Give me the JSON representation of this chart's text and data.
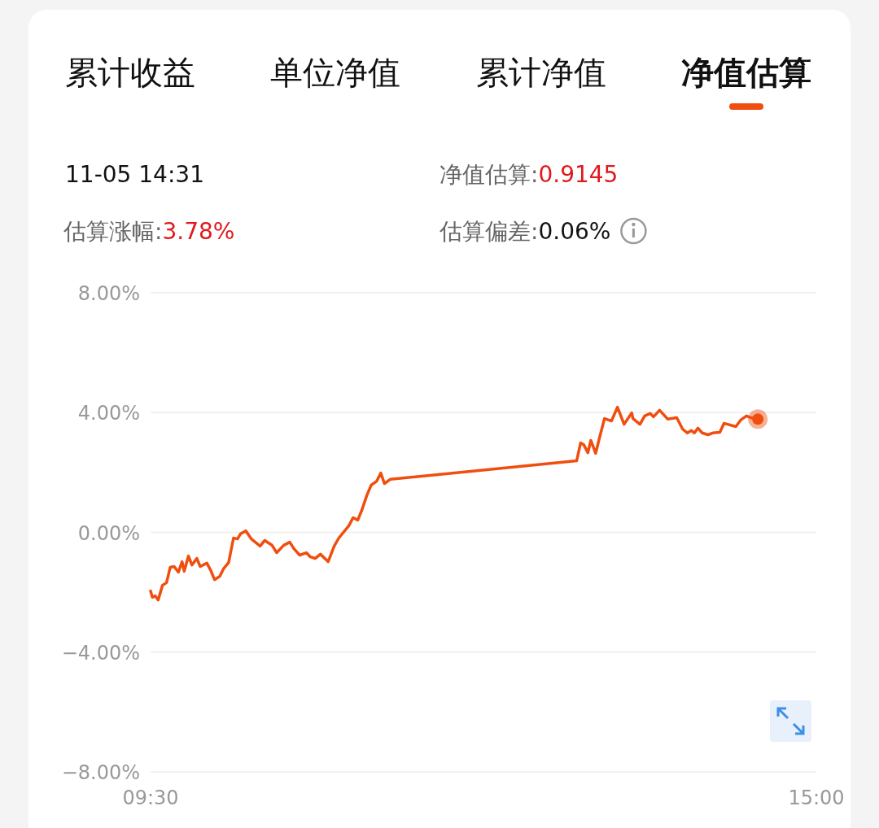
{
  "chart_data": {
    "type": "line",
    "annotations": [
      "累计收益",
      "单位净值",
      "累计净值",
      "净值估算",
      "11-05 14:31",
      "净值估算:0.9145",
      "估算涨幅:3.78%",
      "估算偏差:0.06%"
    ],
    "xlim": [
      9.5,
      15
    ],
    "xticks": [
      {
        "value": 9.5,
        "label": "09:30"
      },
      {
        "value": 15,
        "label": "15:00"
      }
    ],
    "ylim": [
      -8,
      8
    ],
    "yticks": [
      {
        "value": 8,
        "label": "8.00%"
      },
      {
        "value": 4,
        "label": "4.00%"
      },
      {
        "value": 0,
        "label": "0.00%"
      },
      {
        "value": -4,
        "label": "−4.00%"
      },
      {
        "value": -8,
        "label": "−8.00%"
      }
    ],
    "grid": "y",
    "series": [
      {
        "color": "#f04e0f",
        "x": [
          9.5,
          9.515,
          9.538,
          9.563,
          9.598,
          9.632,
          9.662,
          9.695,
          9.73,
          9.76,
          9.778,
          9.813,
          9.842,
          9.882,
          9.91,
          9.965,
          9.998,
          10.028,
          10.072,
          10.102,
          10.145,
          10.185,
          10.218,
          10.243,
          10.287,
          10.332,
          10.405,
          10.443,
          10.503,
          10.542,
          10.6,
          10.65,
          10.683,
          10.732,
          10.787,
          10.82,
          10.86,
          10.903,
          10.967,
          11.017,
          11.055,
          11.138,
          11.173,
          11.212,
          11.247,
          11.285,
          11.323,
          11.368,
          11.402,
          11.432,
          11.48,
          13.02,
          13.053,
          13.078,
          13.113,
          13.137,
          13.177,
          13.215,
          13.25,
          13.308,
          13.357,
          13.412,
          13.475,
          13.485,
          13.543,
          13.582,
          13.627,
          13.655,
          13.705,
          13.773,
          13.847,
          13.895,
          13.935,
          13.968,
          13.993,
          14.022,
          14.057,
          14.105,
          14.145,
          14.203,
          14.237,
          14.267,
          14.335,
          14.375,
          14.423,
          14.458,
          14.517
        ],
        "values": [
          -1.96,
          -2.17,
          -2.12,
          -2.26,
          -1.77,
          -1.68,
          -1.17,
          -1.14,
          -1.33,
          -0.98,
          -1.3,
          -0.79,
          -1.09,
          -0.87,
          -1.14,
          -1.03,
          -1.28,
          -1.58,
          -1.47,
          -1.22,
          -1.01,
          -0.19,
          -0.22,
          -0.05,
          0.05,
          -0.22,
          -0.46,
          -0.27,
          -0.43,
          -0.68,
          -0.43,
          -0.33,
          -0.54,
          -0.76,
          -0.68,
          -0.82,
          -0.87,
          -0.73,
          -0.98,
          -0.46,
          -0.19,
          0.22,
          0.49,
          0.41,
          0.76,
          1.22,
          1.58,
          1.71,
          1.98,
          1.63,
          1.77,
          2.39,
          2.99,
          2.93,
          2.66,
          3.07,
          2.64,
          3.26,
          3.8,
          3.72,
          4.18,
          3.61,
          3.99,
          3.8,
          3.61,
          3.89,
          3.97,
          3.86,
          4.08,
          3.78,
          3.83,
          3.45,
          3.32,
          3.4,
          3.32,
          3.48,
          3.32,
          3.26,
          3.32,
          3.34,
          3.64,
          3.61,
          3.53,
          3.75,
          3.89,
          3.83,
          3.78
        ]
      }
    ]
  }
}
